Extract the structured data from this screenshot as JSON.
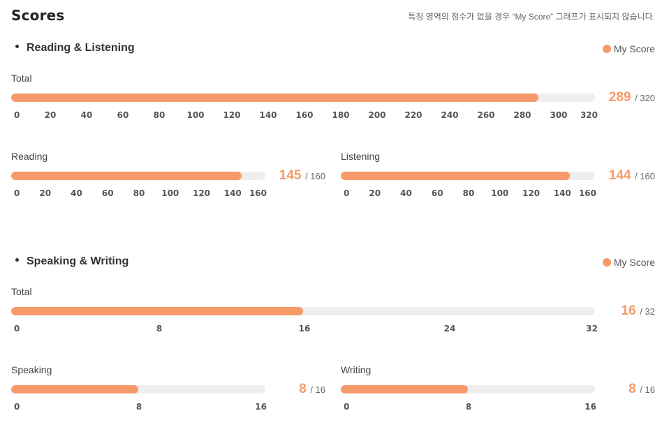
{
  "page": {
    "title": "Scores",
    "notice": "특정 영역의 점수가 없을 경우 “My Score” 그래프가 표시되지 않습니다."
  },
  "reading_listening": {
    "title": "Reading & Listening",
    "legend": "My Score",
    "total": {
      "label": "Total",
      "score": "289",
      "max": "/ 320",
      "value": 289,
      "max_value": 320,
      "ticks": [
        "0",
        "20",
        "40",
        "60",
        "80",
        "100",
        "120",
        "140",
        "160",
        "180",
        "200",
        "220",
        "240",
        "260",
        "280",
        "300",
        "320"
      ]
    },
    "reading": {
      "label": "Reading",
      "score": "145",
      "max": "/ 160",
      "value": 145,
      "max_value": 160,
      "ticks": [
        "0",
        "20",
        "40",
        "60",
        "80",
        "100",
        "120",
        "140",
        "160"
      ]
    },
    "listening": {
      "label": "Listening",
      "score": "144",
      "max": "/ 160",
      "value": 144,
      "max_value": 160,
      "ticks": [
        "0",
        "20",
        "40",
        "60",
        "80",
        "100",
        "120",
        "140",
        "160"
      ]
    }
  },
  "speaking_writing": {
    "title": "Speaking & Writing",
    "legend": "My Score",
    "total": {
      "label": "Total",
      "score": "16",
      "max": "/ 32",
      "value": 16,
      "max_value": 32,
      "ticks": [
        "0",
        "8",
        "16",
        "24",
        "32"
      ]
    },
    "speaking": {
      "label": "Speaking",
      "score": "8",
      "max": "/ 16",
      "value": 8,
      "max_value": 16,
      "ticks": [
        "0",
        "8",
        "16"
      ]
    },
    "writing": {
      "label": "Writing",
      "score": "8",
      "max": "/ 16",
      "value": 8,
      "max_value": 16,
      "ticks": [
        "0",
        "8",
        "16"
      ]
    }
  },
  "colors": {
    "accent": "#f79a6a",
    "track": "#eeeeee"
  }
}
